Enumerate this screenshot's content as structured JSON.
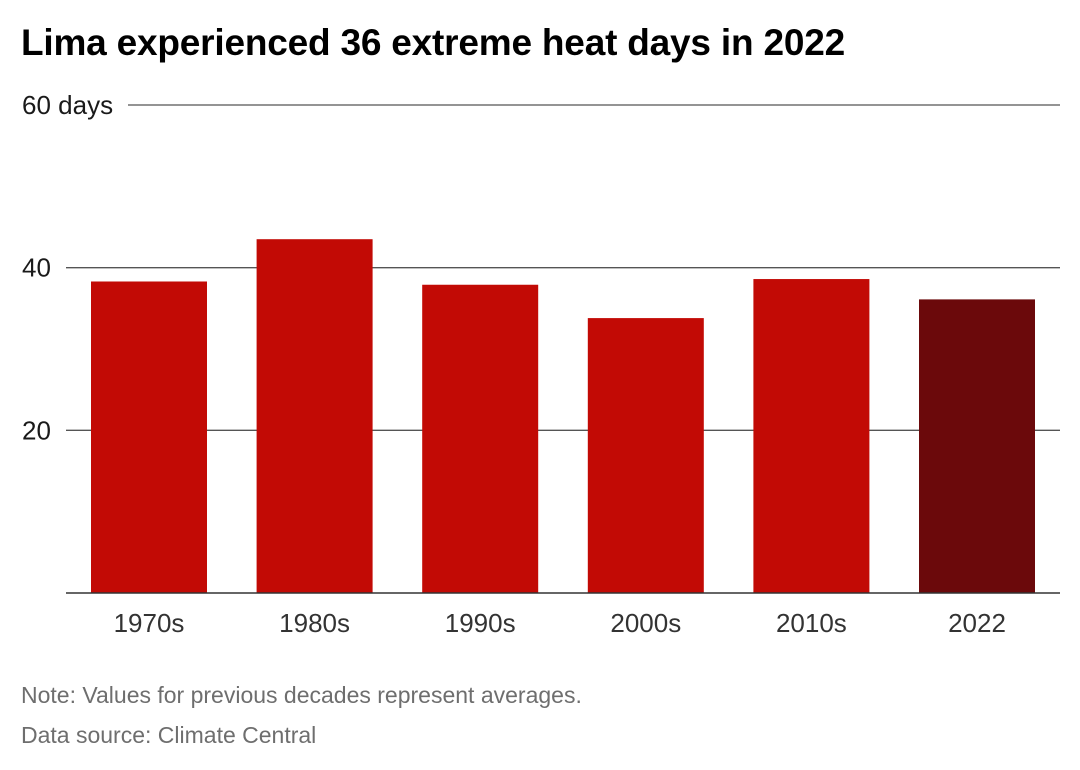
{
  "title": "Lima experienced 36 extreme heat days in 2022",
  "chart_data": {
    "type": "bar",
    "title": "Lima experienced 36 extreme heat days in 2022",
    "categories": [
      "1970s",
      "1980s",
      "1990s",
      "2000s",
      "2010s",
      "2022"
    ],
    "values": [
      38.3,
      43.5,
      37.9,
      33.8,
      38.6,
      36.1
    ],
    "ylim": [
      0,
      60
    ],
    "yticks": [
      20,
      40,
      60
    ],
    "ytick_labels": [
      "20",
      "40",
      "60 days"
    ],
    "grid": true,
    "colors": {
      "decade_bar": "#c20a05",
      "highlight_bar": "#6b090b",
      "grid": "#555555"
    },
    "highlight_category": "2022"
  },
  "footer": {
    "note": "Note: Values for previous decades represent averages.",
    "source": "Data source: Climate Central"
  }
}
